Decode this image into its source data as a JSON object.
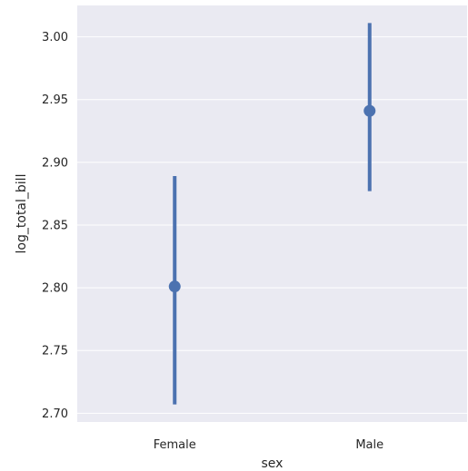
{
  "chart_data": {
    "type": "pointplot",
    "xlabel": "sex",
    "ylabel": "log_total_bill",
    "categories": [
      "Female",
      "Male"
    ],
    "series": [
      {
        "estimates": [
          2.801,
          2.941
        ],
        "ci_low": [
          2.707,
          2.877
        ],
        "ci_high": [
          2.889,
          3.011
        ]
      }
    ],
    "ylim": [
      2.693,
      3.025
    ],
    "yticks": [
      2.7,
      2.75,
      2.8,
      2.85,
      2.9,
      2.95,
      3.0
    ],
    "ytick_labels": [
      "2.70",
      "2.75",
      "2.80",
      "2.85",
      "2.90",
      "2.95",
      "3.00"
    ],
    "grid": true,
    "colors": {
      "background": "#eaeaf2",
      "grid": "#ffffff",
      "mark": "#4c72b0",
      "text": "#262626"
    }
  }
}
